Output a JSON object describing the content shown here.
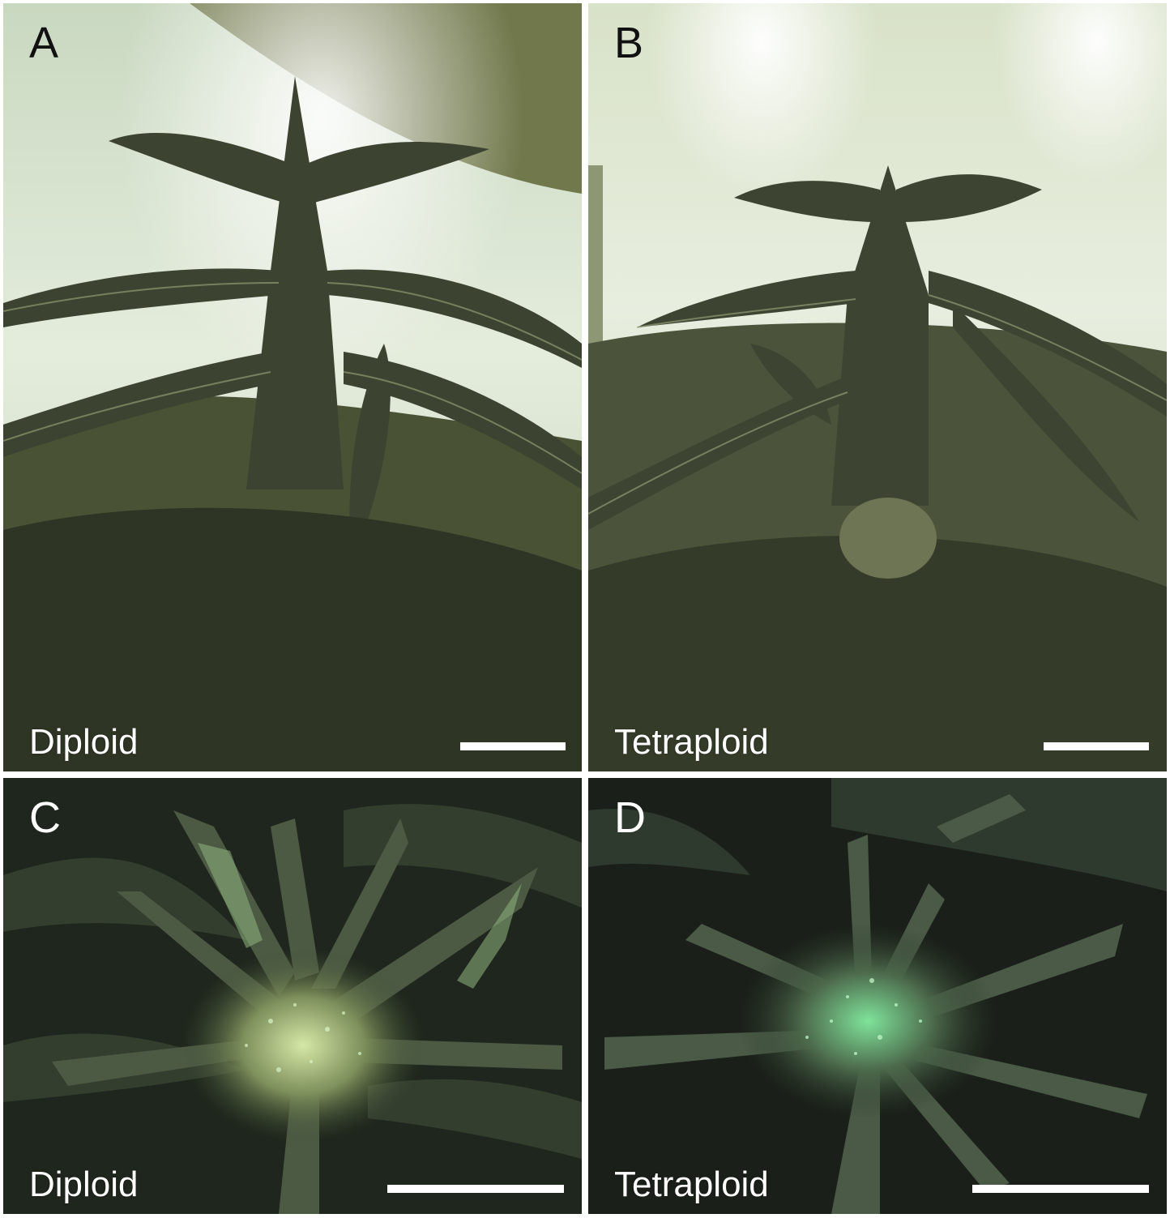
{
  "panels": [
    {
      "letter": "A",
      "label": "Diploid"
    },
    {
      "letter": "B",
      "label": "Tetraploid"
    },
    {
      "letter": "C",
      "label": "Diploid"
    },
    {
      "letter": "D",
      "label": "Tetraploid"
    }
  ],
  "colors": {
    "sky_light": "#dfe8d2",
    "ceiling": "#6f7548",
    "leaf_dark": "#3f452d",
    "leaf_mid": "#5f6a48",
    "leaf_light": "#9aa47f",
    "night_bg": "#1c221a",
    "trichome": "#b7f0b0",
    "scale_bar": "#ffffff"
  }
}
